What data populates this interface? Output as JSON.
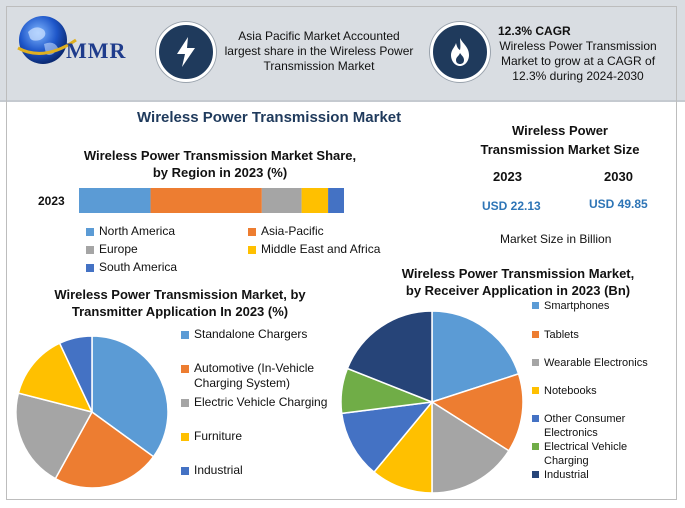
{
  "brand": {
    "logo_text": "MMR"
  },
  "colors": {
    "blue": "#5b9bd5",
    "orange": "#ed7d31",
    "gray": "#a5a5a5",
    "yellow": "#ffc000",
    "darkblue": "#4472c4",
    "green": "#70ad47",
    "navy": "#264478"
  },
  "info1": {
    "icon": "lightning-icon",
    "lines": [
      "Asia Pacific Market Accounted",
      "largest share in the Wireless Power",
      "Transmission Market"
    ]
  },
  "info2": {
    "icon": "flame-icon",
    "title": "12.3% CAGR",
    "lines": [
      "Wireless Power Transmission",
      "Market to grow at a CAGR of",
      "12.3% during 2024-2030"
    ]
  },
  "main_title": "Wireless Power Transmission Market",
  "market_size": {
    "title_lines": [
      "Wireless Power",
      "Transmission Market Size"
    ],
    "years": [
      "2023",
      "2030"
    ],
    "values": [
      "USD 22.13",
      "USD 49.85"
    ],
    "note": "Market Size in Billion"
  },
  "chart_data": [
    {
      "type": "bar",
      "orientation": "horizontal-stacked",
      "title_lines": [
        "Wireless Power Transmission Market Share,",
        "by Region in 2023 (%)"
      ],
      "categories": [
        "2023"
      ],
      "series": [
        {
          "name": "North America",
          "values": [
            27
          ],
          "color": "#5b9bd5"
        },
        {
          "name": "Asia-Pacific",
          "values": [
            42
          ],
          "color": "#ed7d31"
        },
        {
          "name": "Europe",
          "values": [
            15
          ],
          "color": "#a5a5a5"
        },
        {
          "name": "Middle East and Africa",
          "values": [
            10
          ],
          "color": "#ffc000"
        },
        {
          "name": "South America",
          "values": [
            6
          ],
          "color": "#4472c4"
        }
      ],
      "legend": "bottom"
    },
    {
      "type": "pie",
      "title_lines": [
        "Wireless Power Transmission Market, by",
        "Transmitter Application In 2023 (%)"
      ],
      "slices": [
        {
          "label_lines": [
            "Standalone Chargers"
          ],
          "value": 35,
          "color": "#5b9bd5"
        },
        {
          "label_lines": [
            "Automotive (In-Vehicle",
            "Charging System)"
          ],
          "value": 23,
          "color": "#ed7d31"
        },
        {
          "label_lines": [
            "Electric Vehicle Charging"
          ],
          "value": 21,
          "color": "#a5a5a5"
        },
        {
          "label_lines": [
            "Furniture"
          ],
          "value": 14,
          "color": "#ffc000"
        },
        {
          "label_lines": [
            "Industrial"
          ],
          "value": 7,
          "color": "#4472c4"
        }
      ],
      "legend": "right"
    },
    {
      "type": "pie",
      "title_lines": [
        "Wireless Power Transmission Market,",
        "by Receiver Application in 2023 (Bn)"
      ],
      "slices": [
        {
          "label_lines": [
            "Smartphones"
          ],
          "value": 20,
          "color": "#5b9bd5"
        },
        {
          "label_lines": [
            "Tablets"
          ],
          "value": 14,
          "color": "#ed7d31"
        },
        {
          "label_lines": [
            "Wearable Electronics"
          ],
          "value": 16,
          "color": "#a5a5a5"
        },
        {
          "label_lines": [
            "Notebooks"
          ],
          "value": 11,
          "color": "#ffc000"
        },
        {
          "label_lines": [
            "Other Consumer",
            "Electronics"
          ],
          "value": 12,
          "color": "#4472c4"
        },
        {
          "label_lines": [
            "Electrical Vehicle",
            "Charging"
          ],
          "value": 8,
          "color": "#70ad47"
        },
        {
          "label_lines": [
            "Industrial"
          ],
          "value": 19,
          "color": "#264478"
        }
      ],
      "legend": "right"
    }
  ]
}
